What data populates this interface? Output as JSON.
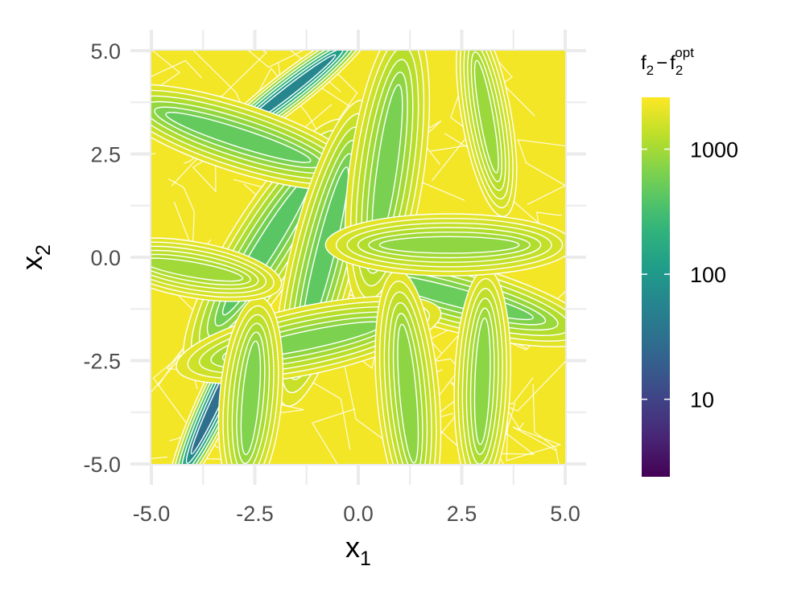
{
  "chart_data": {
    "type": "heatmap",
    "subtype": "filled contour",
    "xlabel": {
      "main": "x",
      "sub": "1"
    },
    "ylabel": {
      "main": "x",
      "sub": "2"
    },
    "xlim": [
      -5,
      5
    ],
    "ylim": [
      -5,
      5
    ],
    "x_ticks": [
      -5,
      -2.5,
      0,
      2.5,
      5
    ],
    "y_ticks": [
      -5,
      -2.5,
      0,
      2.5,
      5
    ],
    "x_tick_labels": [
      "-5.0",
      "-2.5",
      "0.0",
      "2.5",
      "5.0"
    ],
    "y_tick_labels": [
      "-5.0",
      "-2.5",
      "0.0",
      "2.5",
      "5.0"
    ],
    "grid": true,
    "contour_line_color": "#ffffff",
    "colorbar": {
      "title": {
        "main": "f",
        "sub": "2",
        "minus": "−",
        "main2": "f",
        "sub2": "2",
        "sup2": "opt"
      },
      "scale": "log10",
      "range": [
        2.4,
        2600
      ],
      "ticks": [
        10,
        100,
        1000
      ],
      "tick_labels": [
        "10",
        "100",
        "1000"
      ],
      "palette": "viridis",
      "colors": [
        "#440154",
        "#482878",
        "#3e4989",
        "#31688e",
        "#26828e",
        "#1f9e89",
        "#35b779",
        "#6ece58",
        "#b5de2b",
        "#fde725"
      ],
      "position": "right"
    },
    "ellipses": [
      {
        "cx": -3.35,
        "cy": -3.3,
        "rx": 2.1,
        "ry": 0.12,
        "angle_deg": 65,
        "value": 30
      },
      {
        "cx": -1.7,
        "cy": 4.0,
        "rx": 1.9,
        "ry": 0.12,
        "angle_deg": 38,
        "value": 60
      },
      {
        "cx": -2.2,
        "cy": 0.3,
        "rx": 2.6,
        "ry": 0.24,
        "angle_deg": 58,
        "value": 420
      },
      {
        "cx": -2.9,
        "cy": 2.9,
        "rx": 2.4,
        "ry": 0.22,
        "angle_deg": -18,
        "value": 480
      },
      {
        "cx": 2.3,
        "cy": -0.95,
        "rx": 2.6,
        "ry": 0.22,
        "angle_deg": -15,
        "value": 520
      },
      {
        "cx": -0.8,
        "cy": 0.1,
        "rx": 2.8,
        "ry": 0.22,
        "angle_deg": 76,
        "value": 450
      },
      {
        "cx": 0.7,
        "cy": 2.2,
        "rx": 2.6,
        "ry": 0.24,
        "angle_deg": 82,
        "value": 620
      },
      {
        "cx": -1.2,
        "cy": -2.0,
        "rx": 2.4,
        "ry": 0.22,
        "angle_deg": 12,
        "value": 640
      },
      {
        "cx": -2.6,
        "cy": -3.4,
        "rx": 1.8,
        "ry": 0.2,
        "angle_deg": 85,
        "value": 680
      },
      {
        "cx": 3.0,
        "cy": -3.0,
        "rx": 2.0,
        "ry": 0.18,
        "angle_deg": 88,
        "value": 760
      },
      {
        "cx": 1.2,
        "cy": -3.3,
        "rx": 2.2,
        "ry": 0.2,
        "angle_deg": 95,
        "value": 780
      },
      {
        "cx": 2.2,
        "cy": 0.3,
        "rx": 2.2,
        "ry": 0.2,
        "angle_deg": 0,
        "value": 800
      },
      {
        "cx": 3.1,
        "cy": 3.4,
        "rx": 1.8,
        "ry": 0.16,
        "angle_deg": 100,
        "value": 900
      },
      {
        "cx": -4.0,
        "cy": -0.3,
        "rx": 1.6,
        "ry": 0.18,
        "angle_deg": -10,
        "value": 950
      }
    ]
  }
}
